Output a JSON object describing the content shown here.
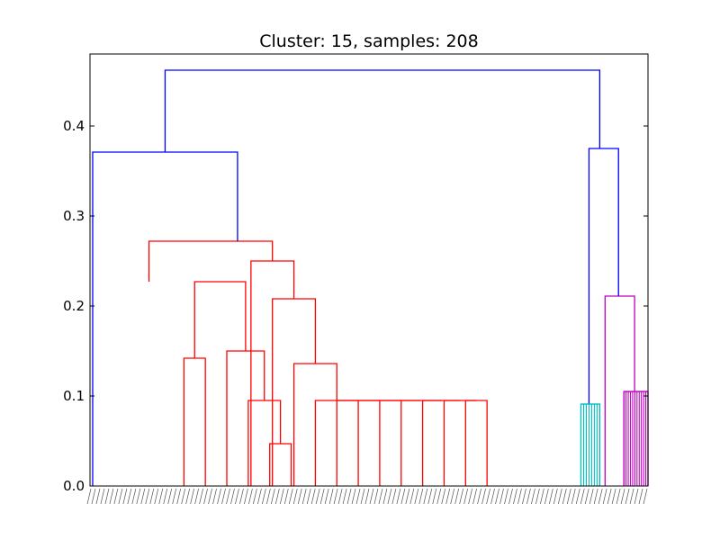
{
  "chart_data": {
    "type": "dendrogram",
    "title": "Cluster: 15, samples: 208",
    "xlabel": "",
    "ylabel": "",
    "ylim": [
      0,
      0.48
    ],
    "y_ticks": [
      "0.0",
      "0.1",
      "0.2",
      "0.3",
      "0.4"
    ],
    "y_tick_values": [
      0.0,
      0.1,
      0.2,
      0.3,
      0.4
    ],
    "grid": false,
    "x_range": [
      0,
      208
    ],
    "leaf_labels_visible": "dense, unreadable rotated sample labels",
    "colors": {
      "above_threshold": "#0000ff",
      "red_cluster": "#ff0000",
      "cyan_cluster": "#00bfbf",
      "magenta_cluster": "#bf00bf"
    },
    "merges": [
      {
        "color": "#ff0000",
        "xl": 67,
        "xr": 75,
        "yl": 0.0,
        "yr": 0.0,
        "h": 0.047
      },
      {
        "color": "#ff0000",
        "xl": 59,
        "xr": 71,
        "yl": 0.0,
        "yr": 0.047,
        "h": 0.095
      },
      {
        "color": "#ff0000",
        "xl": 51,
        "xr": 65,
        "yl": 0.0,
        "yr": 0.095,
        "h": 0.15
      },
      {
        "color": "#ff0000",
        "xl": 35,
        "xr": 43,
        "yl": 0.0,
        "yr": 0.0,
        "h": 0.142
      },
      {
        "color": "#ff0000",
        "xl": 39,
        "xr": 58,
        "yl": 0.142,
        "yr": 0.15,
        "h": 0.227
      },
      {
        "color": "#ff0000",
        "xl": 140,
        "xr": 148,
        "yl": 0.0,
        "yr": 0.0,
        "h": 0.095
      },
      {
        "color": "#ff0000",
        "xl": 132,
        "xr": 144,
        "yl": 0.0,
        "yr": 0.095,
        "h": 0.095
      },
      {
        "color": "#ff0000",
        "xl": 124,
        "xr": 138,
        "yl": 0.0,
        "yr": 0.095,
        "h": 0.095
      },
      {
        "color": "#ff0000",
        "xl": 116,
        "xr": 131,
        "yl": 0.0,
        "yr": 0.095,
        "h": 0.095
      },
      {
        "color": "#ff0000",
        "xl": 108,
        "xr": 123,
        "yl": 0.0,
        "yr": 0.095,
        "h": 0.095
      },
      {
        "color": "#ff0000",
        "xl": 100,
        "xr": 116,
        "yl": 0.0,
        "yr": 0.095,
        "h": 0.095
      },
      {
        "color": "#ff0000",
        "xl": 92,
        "xr": 108,
        "yl": 0.0,
        "yr": 0.095,
        "h": 0.095
      },
      {
        "color": "#ff0000",
        "xl": 84,
        "xr": 100,
        "yl": 0.0,
        "yr": 0.095,
        "h": 0.095
      },
      {
        "color": "#ff0000",
        "xl": 76,
        "xr": 92,
        "yl": 0.0,
        "yr": 0.095,
        "h": 0.136
      },
      {
        "color": "#ff0000",
        "xl": 68,
        "xr": 84,
        "yl": 0.0,
        "yr": 0.136,
        "h": 0.208
      },
      {
        "color": "#ff0000",
        "xl": 60,
        "xr": 76,
        "yl": 0.0,
        "yr": 0.208,
        "h": 0.25
      },
      {
        "color": "#ff0000",
        "xl": 22,
        "xr": 68,
        "yl": 0.227,
        "yr": 0.25,
        "h": 0.272
      },
      {
        "color": "#0000ff",
        "xl": 1,
        "xr": 55,
        "yl": 0.0,
        "yr": 0.272,
        "h": 0.371
      },
      {
        "color": "#00bfbf",
        "xl": 183,
        "xr": 190,
        "yl": 0.0,
        "yr": 0.0,
        "h": 0.091
      },
      {
        "color": "#bf00bf",
        "xl": 199,
        "xr": 208,
        "yl": 0.0,
        "yr": 0.0,
        "h": 0.105
      },
      {
        "color": "#bf00bf",
        "xl": 192,
        "xr": 203,
        "yl": 0.0,
        "yr": 0.105,
        "h": 0.211
      },
      {
        "color": "#0000ff",
        "xl": 186,
        "xr": 197,
        "yl": 0.091,
        "yr": 0.211,
        "h": 0.375
      },
      {
        "color": "#0000ff",
        "xl": 28,
        "xr": 190,
        "yl": 0.371,
        "yr": 0.375,
        "h": 0.462
      }
    ],
    "dense_clusters": [
      {
        "color": "#00bfbf",
        "x_from": 183,
        "x_to": 190,
        "count": 8,
        "h": 0.091
      },
      {
        "color": "#bf00bf",
        "x_from": 199,
        "x_to": 208,
        "count": 12,
        "h": 0.105
      }
    ]
  }
}
